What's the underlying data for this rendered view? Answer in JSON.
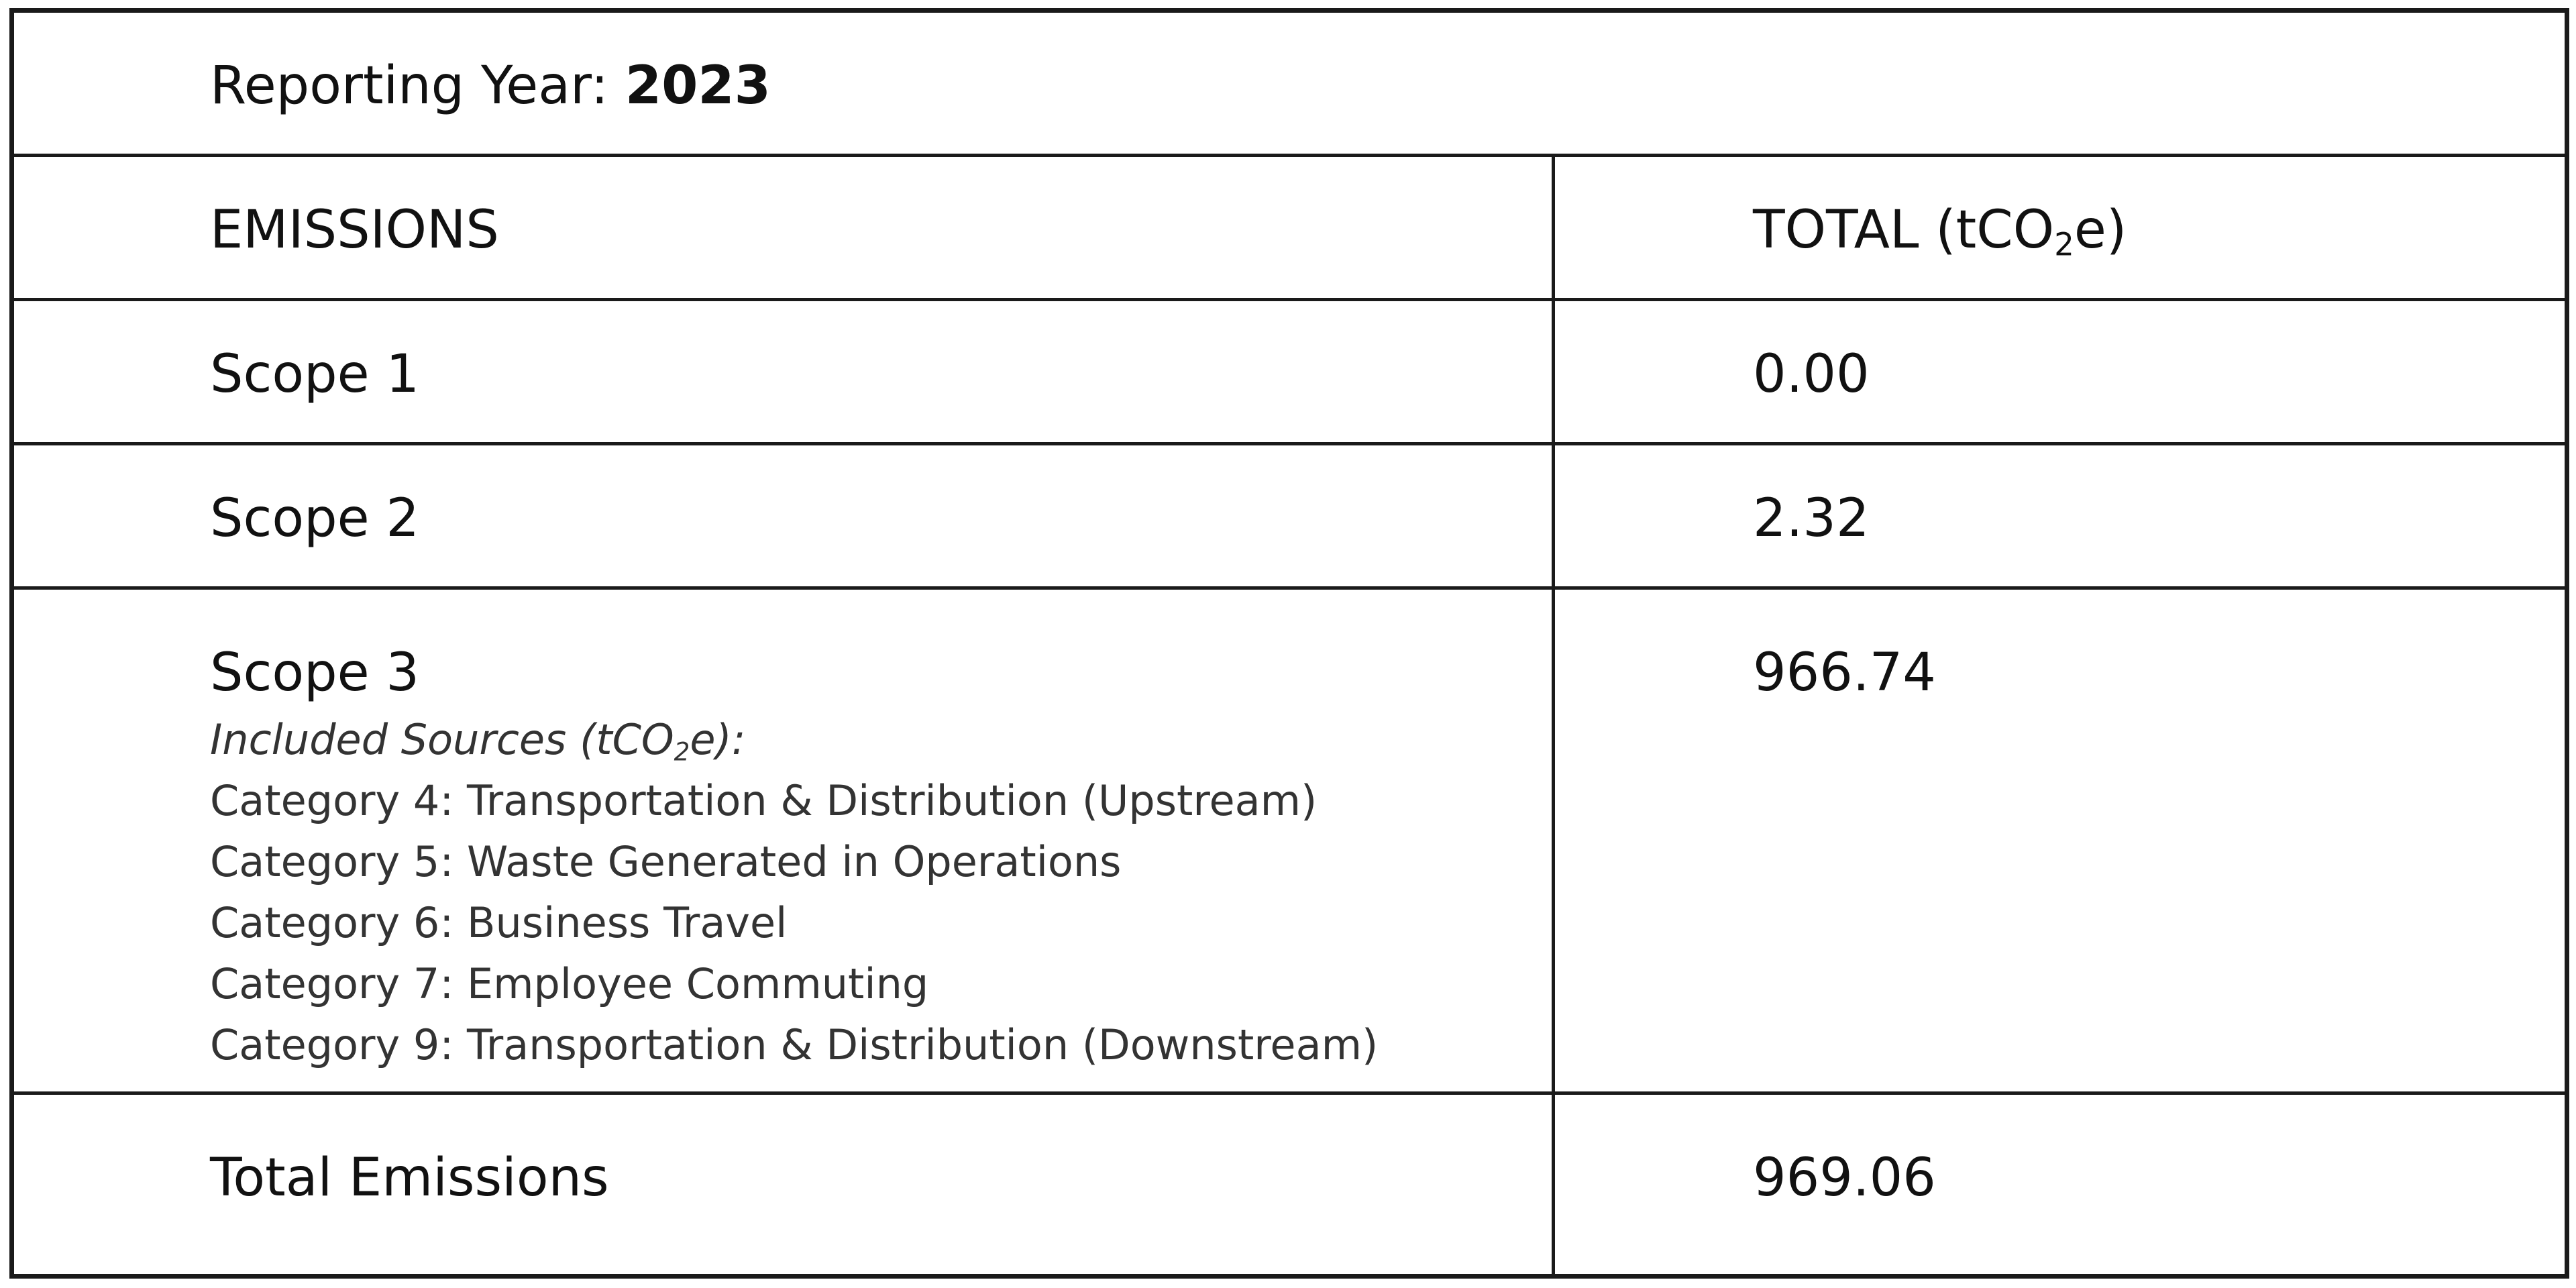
{
  "header": {
    "reporting_year_label": "Reporting Year:",
    "reporting_year_value": "2023"
  },
  "columns": {
    "emissions": "EMISSIONS",
    "total_prefix": "TOTAL (tCO",
    "total_sub": "2",
    "total_suffix": "e)"
  },
  "rows": [
    {
      "label": "Scope 1",
      "value": "0.00"
    },
    {
      "label": "Scope 2",
      "value": "2.32"
    },
    {
      "label": "Scope 3",
      "value": "966.74"
    },
    {
      "label": "Total Emissions",
      "value": "969.06"
    }
  ],
  "scope3_sources": {
    "header_prefix": "Included Sources (tCO",
    "header_sub": "2",
    "header_suffix": "e):",
    "items": [
      "Category 4: Transportation & Distribution (Upstream)",
      "Category 5: Waste Generated in Operations",
      "Category 6: Business Travel",
      "Category 7: Employee Commuting",
      "Category 9: Transportation & Distribution (Downstream)"
    ]
  }
}
